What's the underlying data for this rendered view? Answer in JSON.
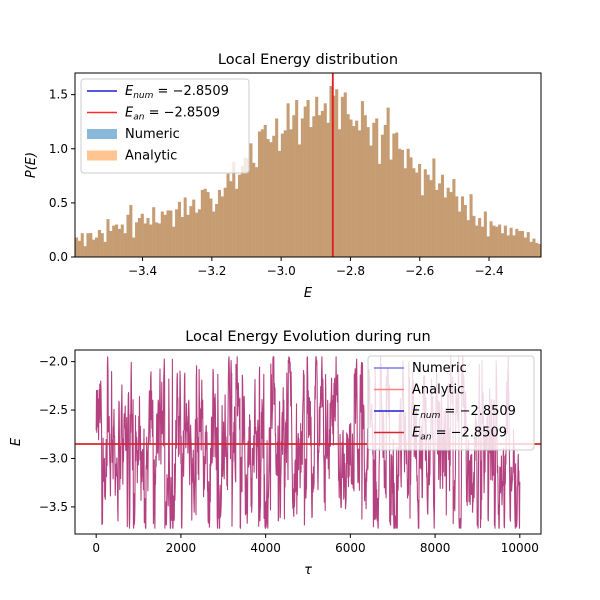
{
  "chart_data": [
    {
      "type": "bar",
      "title": "Local Energy distribution",
      "xlabel": "E",
      "ylabel": "P(E)",
      "xlim": [
        -3.595,
        -2.25
      ],
      "ylim": [
        0,
        1.7
      ],
      "xticks": [
        -3.4,
        -3.2,
        -3.0,
        -2.8,
        -2.6,
        -2.4
      ],
      "xtick_labels": [
        "−3.4",
        "−3.2",
        "−3.0",
        "−2.8",
        "−2.6",
        "−2.4"
      ],
      "yticks": [
        0.0,
        0.5,
        1.0,
        1.5
      ],
      "ytick_labels": [
        "0.0",
        "0.5",
        "1.0",
        "1.5"
      ],
      "vline_x": -2.8509,
      "legend_position": "top-left",
      "legend": [
        {
          "label": "E_num = −2.8509",
          "main": "E",
          "sub": "num",
          "value": " = −2.8509",
          "kind": "line",
          "color": "#1f1fd6"
        },
        {
          "label": "E_an = −2.8509",
          "main": "E",
          "sub": "an",
          "value": " = −2.8509",
          "kind": "line",
          "color": "#ff2a2a"
        },
        {
          "label": "Numeric",
          "kind": "patch",
          "color": "#8ab8db"
        },
        {
          "label": "Analytic",
          "kind": "patch",
          "color": "#ffc48f"
        }
      ],
      "bin_edges_range": [
        -3.595,
        -2.25
      ],
      "series": [
        {
          "name": "Numeric",
          "color": "#1f77b4",
          "opacity": 0.5
        },
        {
          "name": "Analytic",
          "color": "#ff7f0e",
          "opacity": 0.5
        }
      ],
      "overlap_color": "#c69c72",
      "bin_values": [
        0.18,
        0.15,
        0.22,
        0.1,
        0.22,
        0.22,
        0.16,
        0.18,
        0.25,
        0.22,
        0.14,
        0.35,
        0.24,
        0.29,
        0.3,
        0.26,
        0.3,
        0.22,
        0.39,
        0.48,
        0.18,
        0.32,
        0.36,
        0.4,
        0.31,
        0.36,
        0.3,
        0.46,
        0.32,
        0.31,
        0.42,
        0.39,
        0.43,
        0.43,
        0.28,
        0.44,
        0.51,
        0.37,
        0.55,
        0.39,
        0.47,
        0.53,
        0.41,
        0.44,
        0.62,
        0.63,
        0.6,
        0.54,
        0.42,
        0.49,
        0.62,
        0.56,
        0.64,
        0.77,
        0.7,
        0.88,
        0.63,
        0.76,
        0.84,
        0.92,
        0.91,
        1.05,
        0.87,
        0.83,
        1.16,
        1.18,
        1.22,
        1.09,
        1.06,
        1.12,
        1.28,
        0.98,
        1.14,
        1.17,
        1.42,
        1.18,
        1.31,
        1.45,
        1.04,
        1.28,
        1.39,
        1.45,
        1.2,
        1.3,
        1.48,
        1.31,
        1.35,
        1.42,
        1.24,
        1.58,
        1.49,
        1.55,
        1.18,
        1.48,
        1.52,
        1.32,
        1.27,
        1.21,
        1.26,
        1.17,
        1.44,
        1.31,
        1.2,
        1.03,
        1.24,
        1.28,
        0.86,
        1.13,
        1.22,
        1.38,
        0.9,
        1.14,
        1.15,
        1.0,
        0.99,
        0.82,
        1.0,
        0.92,
        0.82,
        0.78,
        0.86,
        0.57,
        0.81,
        0.76,
        0.71,
        0.91,
        0.62,
        0.68,
        0.76,
        0.55,
        0.64,
        0.6,
        0.72,
        0.56,
        0.42,
        0.56,
        0.48,
        0.34,
        0.58,
        0.38,
        0.29,
        0.36,
        0.28,
        0.42,
        0.19,
        0.33,
        0.29,
        0.28,
        0.3,
        0.22,
        0.29,
        0.2,
        0.27,
        0.2,
        0.26,
        0.24,
        0.24,
        0.18,
        0.23,
        0.14,
        0.17,
        0.13,
        0.12
      ]
    },
    {
      "type": "line",
      "title": "Local Energy Evolution during run",
      "xlabel": "τ",
      "ylabel": "E",
      "xlim": [
        -500,
        10500
      ],
      "ylim": [
        -3.78,
        -1.88
      ],
      "xticks": [
        0,
        2000,
        4000,
        6000,
        8000,
        10000
      ],
      "xtick_labels": [
        "0",
        "2000",
        "4000",
        "6000",
        "8000",
        "10000"
      ],
      "yticks": [
        -3.5,
        -3.0,
        -2.5,
        -2.0
      ],
      "ytick_labels": [
        "−3.5",
        "−3.0",
        "−2.5",
        "−2.0"
      ],
      "hline_y": -2.8509,
      "legend_position": "top-right",
      "legend": [
        {
          "label": "Numeric",
          "kind": "line",
          "color": "#7b7bee"
        },
        {
          "label": "Analytic",
          "kind": "line",
          "color": "#ff8080"
        },
        {
          "label": "E_num = −2.8509",
          "main": "E",
          "sub": "num",
          "value": " = −2.8509",
          "kind": "line",
          "color": "#1f1fd6"
        },
        {
          "label": "E_an = −2.8509",
          "main": "E",
          "sub": "an",
          "value": " = −2.8509",
          "kind": "line",
          "color": "#d62728"
        }
      ],
      "series": [
        {
          "name": "Numeric",
          "color": "#7b7bee"
        },
        {
          "name": "Analytic",
          "color": "#ff8080"
        }
      ],
      "trace_color": "#b5407f",
      "x_range": [
        0,
        10000
      ],
      "y_range_observed": [
        -3.72,
        -1.95
      ]
    }
  ]
}
